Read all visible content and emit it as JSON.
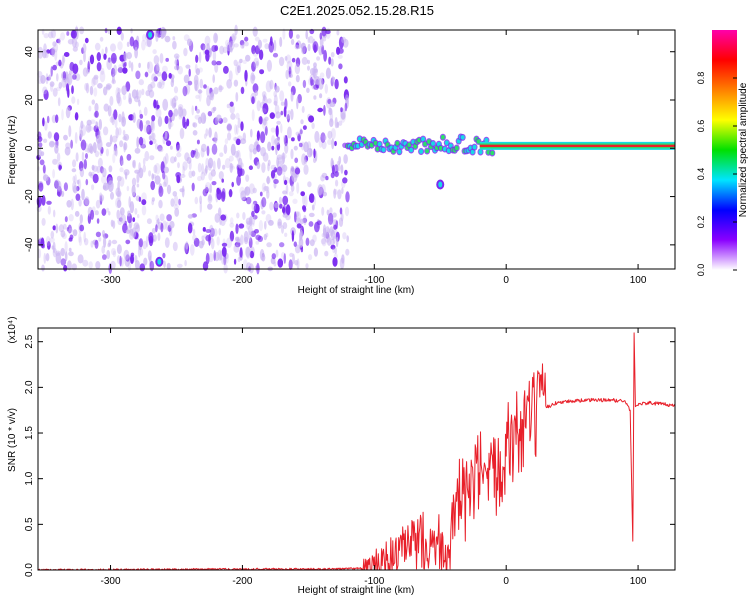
{
  "figure": {
    "title": "C2E1.2025.052.15.28.R15"
  },
  "colors": {
    "spectrogram_low": "#c9b3f2",
    "spectrogram_mid": "#7a2af0",
    "ridge_cyan": "#19d8e6",
    "ridge_green": "#2ae06a",
    "ridge_red": "#e8202a",
    "snr_line": "#e8202a"
  },
  "chart_data": [
    {
      "type": "heatmap",
      "name": "spectrogram",
      "xlabel": "Height of straight line (km)",
      "ylabel": "Frequency (Hz)",
      "xlim": [
        -355,
        128
      ],
      "ylim": [
        -50,
        49
      ],
      "xticks": [
        -300,
        -200,
        -100,
        0,
        100
      ],
      "yticks": [
        -40,
        -20,
        0,
        20,
        40
      ],
      "colorbar": {
        "label": "Normalized spectral amplitude",
        "range": [
          0,
          1
        ],
        "ticks": [
          "0.0",
          "0.2",
          "0.4",
          "0.6",
          "0.8"
        ],
        "stops": [
          "#ffffff",
          "#8a00ff",
          "#0000ff",
          "#00e5ff",
          "#00e000",
          "#ffff00",
          "#ff8000",
          "#ff0000",
          "#ff00aa"
        ]
      },
      "noise_region": {
        "x_range": [
          -355,
          -120
        ],
        "freq_range": [
          -50,
          49
        ],
        "level": 0.2
      },
      "ridge": [
        {
          "x": -120,
          "freq": 3
        },
        {
          "x": -100,
          "freq": 1
        },
        {
          "x": -80,
          "freq": 1
        },
        {
          "x": -60,
          "freq": 1
        },
        {
          "x": -40,
          "freq": 2
        },
        {
          "x": -20,
          "freq": 1
        },
        {
          "x": 0,
          "freq": 1
        },
        {
          "x": 20,
          "freq": 1
        },
        {
          "x": 60,
          "freq": 1
        },
        {
          "x": 90,
          "freq": 3
        },
        {
          "x": 128,
          "freq": 2
        }
      ],
      "features": [
        {
          "x": -270,
          "freq": 47,
          "amplitude": 0.4
        },
        {
          "x": -263,
          "freq": -47,
          "amplitude": 0.4
        },
        {
          "x": -50,
          "freq": -15,
          "amplitude": 0.4
        }
      ]
    },
    {
      "type": "line",
      "name": "snr",
      "xlabel": "Height of straight line (km)",
      "ylabel": "SNR (10 * v/v)",
      "y_multiplier": "(x10⁴)",
      "xlim": [
        -355,
        128
      ],
      "ylim": [
        0,
        2.65
      ],
      "xticks": [
        -300,
        -200,
        -100,
        0,
        100
      ],
      "yticks": [
        "0.0",
        "0.5",
        "1.0",
        "1.5",
        "2.0",
        "2.5"
      ],
      "series": [
        {
          "x": [
            -355,
            -200,
            -130,
            -110,
            -100,
            -90,
            -80,
            -70,
            -60,
            -50,
            -45,
            -40,
            -35,
            -30,
            -25,
            -20,
            -15,
            -10,
            -5,
            0,
            10,
            20,
            30,
            40,
            60,
            80,
            90,
            94,
            96,
            97,
            98,
            100,
            110,
            128
          ],
          "y": [
            0.0,
            0.01,
            0.01,
            0.02,
            0.05,
            0.12,
            0.2,
            0.28,
            0.35,
            0.3,
            0.22,
            0.45,
            0.8,
            0.75,
            0.9,
            1.05,
            0.8,
            0.95,
            1.2,
            1.35,
            1.5,
            1.65,
            1.78,
            1.84,
            1.86,
            1.86,
            1.85,
            1.75,
            0.3,
            2.6,
            1.8,
            1.82,
            1.83,
            1.8
          ]
        }
      ]
    }
  ]
}
